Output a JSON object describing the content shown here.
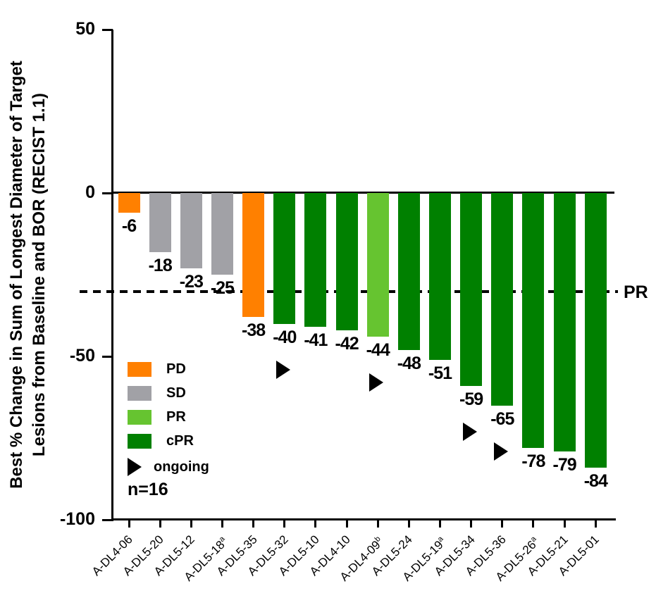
{
  "figure": {
    "y_axis_title_line1": "Best % Change in Sum of Longest Diameter of Target",
    "y_axis_title_line2": "Lesions from Baseline and BOR (RECIST 1.1)",
    "n_label": "n=16"
  },
  "colors": {
    "PD": "#FF8000",
    "SD": "#A1A1A6",
    "PR": "#66C430",
    "cPR": "#008000",
    "axis": "#000000",
    "arrow": "#000000"
  },
  "chart_data": {
    "type": "bar",
    "title": "",
    "ylabel": "Best % Change in Sum of Longest Diameter of Target Lesions from Baseline and BOR (RECIST 1.1)",
    "xlabel": "",
    "ylim": [
      -100,
      50
    ],
    "yticks": [
      50,
      0,
      -50,
      -100
    ],
    "grid": false,
    "n": 16,
    "threshold_line": {
      "value": -30,
      "label": "PR",
      "style": "dashed"
    },
    "categories": [
      {
        "label": "A-DL4-06",
        "sup": ""
      },
      {
        "label": "A-DL5-20",
        "sup": ""
      },
      {
        "label": "A-DL5-12",
        "sup": ""
      },
      {
        "label": "A-DL5-18",
        "sup": "a"
      },
      {
        "label": "A-DL5-35",
        "sup": ""
      },
      {
        "label": "A-DL5-32",
        "sup": ""
      },
      {
        "label": "A-DL5-10",
        "sup": ""
      },
      {
        "label": "A-DL4-10",
        "sup": ""
      },
      {
        "label": "A-DL4-09",
        "sup": "b"
      },
      {
        "label": "A-DL5-24",
        "sup": ""
      },
      {
        "label": "A-DL5-19",
        "sup": "a"
      },
      {
        "label": "A-DL5-34",
        "sup": ""
      },
      {
        "label": "A-DL5-36",
        "sup": ""
      },
      {
        "label": "A-DL5-26",
        "sup": "a"
      },
      {
        "label": "A-DL5-21",
        "sup": ""
      },
      {
        "label": "A-DL5-01",
        "sup": ""
      }
    ],
    "values": [
      -6,
      -18,
      -23,
      -25,
      -38,
      -40,
      -41,
      -42,
      -44,
      -48,
      -51,
      -59,
      -65,
      -78,
      -79,
      -84
    ],
    "bor": [
      "PD",
      "SD",
      "SD",
      "SD",
      "PD",
      "cPR",
      "cPR",
      "cPR",
      "PR",
      "cPR",
      "cPR",
      "cPR",
      "cPR",
      "cPR",
      "cPR",
      "cPR"
    ],
    "ongoing": [
      false,
      false,
      false,
      false,
      false,
      true,
      false,
      false,
      true,
      false,
      false,
      true,
      true,
      false,
      false,
      false
    ],
    "legend": [
      {
        "swatch": "PD",
        "label": "PD"
      },
      {
        "swatch": "SD",
        "label": "SD"
      },
      {
        "swatch": "PR",
        "label": "PR"
      },
      {
        "swatch": "cPR",
        "label": "cPR"
      },
      {
        "swatch": "ongoing",
        "label": "ongoing"
      }
    ],
    "legend_position": "lower-left"
  }
}
